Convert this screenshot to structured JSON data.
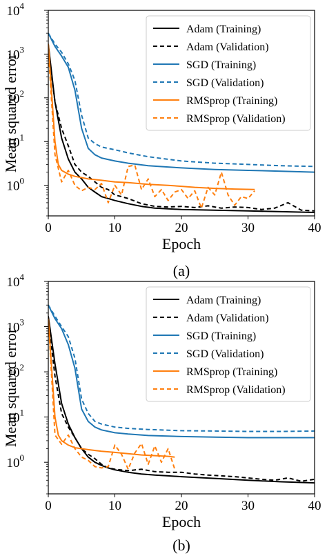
{
  "chart_data": [
    {
      "type": "line",
      "caption": "(a)",
      "xlabel": "Epoch",
      "ylabel": "Mean squared error",
      "xlim": [
        0,
        40
      ],
      "ylim": [
        0.2,
        10000
      ],
      "yscale": "log",
      "x_ticks": [
        "0",
        "10",
        "20",
        "30",
        "40"
      ],
      "y_ticks": [
        "10^0",
        "10^1",
        "10^2",
        "10^3",
        "10^4"
      ],
      "legend_position": "top-right",
      "grid": false,
      "series": [
        {
          "name": "Adam (Training)",
          "color": "#000000",
          "dash": "solid",
          "x": [
            0,
            1,
            2,
            3,
            4,
            5,
            6,
            7,
            8,
            9,
            10,
            12,
            14,
            16,
            18,
            20,
            25,
            30,
            35,
            40
          ],
          "y": [
            1700,
            80,
            12,
            4,
            2,
            1.4,
            0.9,
            0.7,
            0.55,
            0.5,
            0.45,
            0.38,
            0.33,
            0.3,
            0.29,
            0.28,
            0.27,
            0.26,
            0.25,
            0.24
          ]
        },
        {
          "name": "Adam (Validation)",
          "color": "#000000",
          "dash": "dashed",
          "x": [
            0,
            1,
            2,
            3,
            4,
            5,
            6,
            7,
            8,
            9,
            10,
            11,
            12,
            14,
            16,
            18,
            20,
            22,
            24,
            26,
            28,
            30,
            32,
            34,
            36,
            38,
            40
          ],
          "y": [
            1300,
            80,
            20,
            8,
            3,
            2,
            1.6,
            1.2,
            0.9,
            0.8,
            0.6,
            0.55,
            0.5,
            0.38,
            0.33,
            0.32,
            0.33,
            0.31,
            0.34,
            0.3,
            0.32,
            0.31,
            0.28,
            0.3,
            0.4,
            0.27,
            0.26
          ]
        },
        {
          "name": "SGD (Training)",
          "color": "#1f77b4",
          "dash": "solid",
          "x": [
            0,
            1,
            2,
            3,
            4,
            5,
            6,
            7,
            8,
            10,
            12,
            15,
            20,
            25,
            30,
            35,
            40
          ],
          "y": [
            3000,
            1500,
            900,
            500,
            150,
            20,
            7,
            5,
            4.2,
            3.6,
            3.2,
            2.8,
            2.5,
            2.3,
            2.2,
            2.1,
            2.0
          ]
        },
        {
          "name": "SGD (Validation)",
          "color": "#1f77b4",
          "dash": "dashed",
          "x": [
            0,
            1,
            2,
            3,
            4,
            5,
            6,
            7,
            8,
            10,
            12,
            15,
            20,
            25,
            30,
            35,
            40
          ],
          "y": [
            3000,
            1700,
            1100,
            600,
            250,
            40,
            12,
            9,
            7.5,
            6.5,
            5.5,
            4.5,
            3.6,
            3.2,
            3.0,
            2.8,
            2.7
          ]
        },
        {
          "name": "RMSprop (Training)",
          "color": "#ff7f0e",
          "dash": "solid",
          "x": [
            0,
            1,
            1.5,
            2,
            3,
            4,
            5,
            6,
            8,
            10,
            12,
            15,
            18,
            20,
            22,
            25,
            28,
            31
          ],
          "y": [
            1700,
            10,
            3,
            2.2,
            1.8,
            1.6,
            1.5,
            1.4,
            1.3,
            1.2,
            1.15,
            1.05,
            1.0,
            0.95,
            0.9,
            0.85,
            0.82,
            0.8
          ]
        },
        {
          "name": "RMSprop (Validation)",
          "color": "#ff7f0e",
          "dash": "dashed",
          "x": [
            0,
            1,
            2,
            3,
            4,
            5,
            6,
            7,
            8,
            9,
            10,
            11,
            12,
            13,
            14,
            15,
            16,
            17,
            18,
            19,
            20,
            21,
            22,
            23,
            24,
            25,
            26,
            27,
            28,
            29,
            30,
            31
          ],
          "y": [
            1300,
            5,
            1.2,
            2.2,
            1.0,
            0.75,
            0.9,
            0.8,
            1.1,
            0.4,
            1.0,
            0.6,
            2.7,
            2.9,
            0.8,
            1.4,
            0.55,
            0.8,
            0.45,
            0.7,
            0.8,
            0.5,
            0.75,
            0.3,
            0.9,
            0.6,
            2.0,
            0.6,
            0.35,
            0.55,
            0.5,
            0.75
          ]
        }
      ]
    },
    {
      "type": "line",
      "caption": "(b)",
      "xlabel": "Epoch",
      "ylabel": "Mean squared error",
      "xlim": [
        0,
        40
      ],
      "ylim": [
        0.2,
        10000
      ],
      "yscale": "log",
      "x_ticks": [
        "0",
        "10",
        "20",
        "30",
        "40"
      ],
      "y_ticks": [
        "10^0",
        "10^1",
        "10^2",
        "10^3",
        "10^4"
      ],
      "legend_position": "top-right",
      "grid": false,
      "series": [
        {
          "name": "Adam (Training)",
          "color": "#000000",
          "dash": "solid",
          "x": [
            0,
            1,
            2,
            3,
            4,
            5,
            6,
            7,
            8,
            9,
            10,
            12,
            14,
            16,
            18,
            20,
            25,
            30,
            35,
            40
          ],
          "y": [
            1700,
            150,
            20,
            7,
            3.5,
            2.0,
            1.3,
            1.0,
            0.85,
            0.75,
            0.68,
            0.6,
            0.55,
            0.52,
            0.5,
            0.48,
            0.44,
            0.4,
            0.37,
            0.35
          ]
        },
        {
          "name": "Adam (Validation)",
          "color": "#000000",
          "dash": "dashed",
          "x": [
            0,
            1,
            2,
            3,
            4,
            5,
            6,
            7,
            8,
            9,
            10,
            12,
            14,
            16,
            18,
            20,
            22,
            24,
            26,
            28,
            30,
            32,
            34,
            36,
            38,
            40
          ],
          "y": [
            1500,
            80,
            12,
            6,
            3.5,
            2.0,
            1.5,
            1.2,
            0.9,
            0.75,
            0.7,
            0.65,
            0.7,
            0.62,
            0.6,
            0.6,
            0.55,
            0.52,
            0.5,
            0.48,
            0.45,
            0.42,
            0.4,
            0.45,
            0.38,
            0.42
          ]
        },
        {
          "name": "SGD (Training)",
          "color": "#1f77b4",
          "dash": "solid",
          "x": [
            0,
            1,
            2,
            3,
            4,
            5,
            6,
            7,
            8,
            10,
            12,
            15,
            20,
            25,
            30,
            35,
            40
          ],
          "y": [
            3000,
            1500,
            900,
            400,
            120,
            15,
            8,
            6,
            5.2,
            4.5,
            4.2,
            3.9,
            3.7,
            3.6,
            3.5,
            3.5,
            3.5
          ]
        },
        {
          "name": "SGD (Validation)",
          "color": "#1f77b4",
          "dash": "dashed",
          "x": [
            0,
            1,
            2,
            3,
            4,
            5,
            6,
            7,
            8,
            10,
            12,
            15,
            20,
            25,
            30,
            35,
            40
          ],
          "y": [
            3000,
            1700,
            1000,
            600,
            200,
            25,
            12,
            8,
            7,
            6,
            5.6,
            5.3,
            5.0,
            4.9,
            4.8,
            4.8,
            4.9
          ]
        },
        {
          "name": "RMSprop (Training)",
          "color": "#ff7f0e",
          "dash": "solid",
          "x": [
            0,
            1,
            1.5,
            2,
            3,
            4,
            5,
            6,
            8,
            10,
            12,
            14,
            16,
            18,
            19
          ],
          "y": [
            1500,
            10,
            4,
            3,
            2.4,
            2.1,
            2.0,
            1.9,
            1.75,
            1.65,
            1.55,
            1.45,
            1.4,
            1.35,
            1.3
          ]
        },
        {
          "name": "RMSprop (Validation)",
          "color": "#ff7f0e",
          "dash": "dashed",
          "x": [
            0,
            1,
            2,
            3,
            4,
            5,
            6,
            7,
            8,
            9,
            10,
            11,
            12,
            13,
            14,
            15,
            16,
            17,
            18,
            19
          ],
          "y": [
            1500,
            4,
            2.5,
            4,
            2,
            1.3,
            1.1,
            0.8,
            0.75,
            0.8,
            2.4,
            1.5,
            0.7,
            1.6,
            2.6,
            0.9,
            2.3,
            1.0,
            2.0,
            0.7
          ]
        }
      ]
    }
  ]
}
